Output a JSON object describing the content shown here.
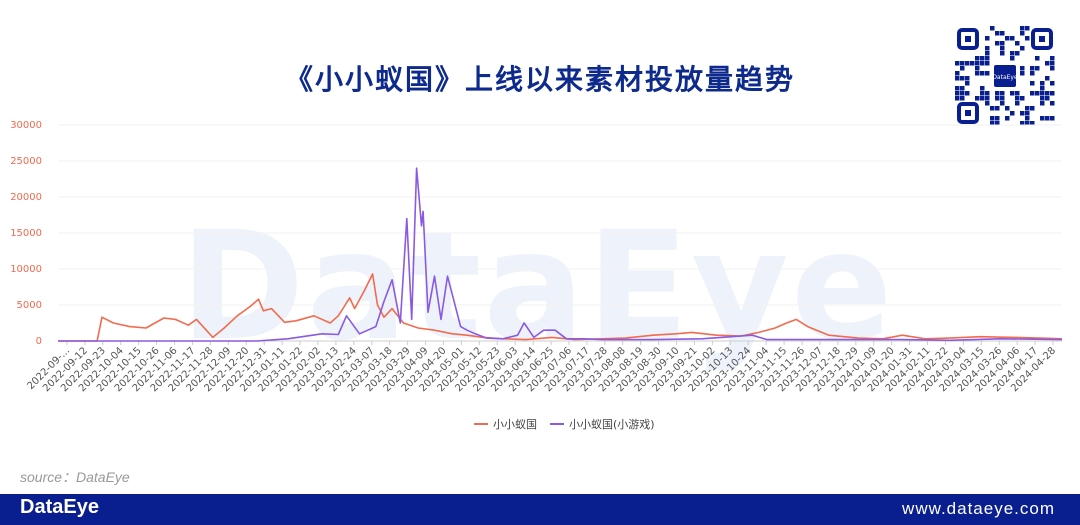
{
  "title": "《小小蚁国》上线以来素材投放量趋势",
  "source": "source：DataEye",
  "footer": {
    "logo": "DataEye",
    "url": "www.dataeye.com"
  },
  "watermark": "DataEye",
  "qr": {
    "center_label": "DataEye"
  },
  "colors": {
    "series1": "#f26b4f",
    "series2": "#8a5ae0",
    "brand": "#0a1f8f",
    "title": "#0e2a8c"
  },
  "chart_data": {
    "type": "line",
    "title": "《小小蚁国》上线以来素材投放量趋势",
    "ylim": [
      0,
      30000
    ],
    "yticks": [
      0,
      5000,
      10000,
      15000,
      20000,
      25000,
      30000
    ],
    "xstart": "2022-09-01",
    "xend": "2024-05-09",
    "xtick_labels": [
      "2022-09-...",
      "2022-09-12",
      "2022-09-23",
      "2022-10-04",
      "2022-10-15",
      "2022-10-26",
      "2022-11-06",
      "2022-11-17",
      "2022-11-28",
      "2022-12-09",
      "2022-12-20",
      "2022-12-31",
      "2023-01-11",
      "2023-01-22",
      "2023-02-02",
      "2023-02-13",
      "2023-02-24",
      "2023-03-07",
      "2023-03-18",
      "2023-03-29",
      "2023-04-09",
      "2023-04-20",
      "2023-05-01",
      "2023-05-12",
      "2023-05-23",
      "2023-06-03",
      "2023-06-14",
      "2023-06-25",
      "2023-07-06",
      "2023-07-17",
      "2023-07-28",
      "2023-08-08",
      "2023-08-19",
      "2023-08-30",
      "2023-09-10",
      "2023-09-21",
      "2023-10-02",
      "2023-10-13",
      "2023-10-24",
      "2023-11-04",
      "2023-11-15",
      "2023-11-26",
      "2023-12-07",
      "2023-12-18",
      "2023-12-29",
      "2024-01-09",
      "2024-01-20",
      "2024-01-31",
      "2024-02-11",
      "2024-02-22",
      "2024-03-04",
      "2024-03-15",
      "2024-03-26",
      "2024-04-06",
      "2024-04-17",
      "2024-04-28"
    ],
    "legend_position": "bottom-center",
    "series": [
      {
        "name": "小小蚁国",
        "color": "#f26b4f",
        "x": [
          "2022-09-01",
          "2022-09-15",
          "2022-09-25",
          "2022-09-28",
          "2022-10-05",
          "2022-10-15",
          "2022-10-25",
          "2022-11-05",
          "2022-11-12",
          "2022-11-20",
          "2022-11-25",
          "2022-12-01",
          "2022-12-05",
          "2022-12-12",
          "2022-12-20",
          "2022-12-28",
          "2023-01-02",
          "2023-01-05",
          "2023-01-10",
          "2023-01-18",
          "2023-01-25",
          "2023-02-05",
          "2023-02-15",
          "2023-02-20",
          "2023-02-27",
          "2023-03-02",
          "2023-03-08",
          "2023-03-13",
          "2023-03-16",
          "2023-03-20",
          "2023-03-25",
          "2023-04-01",
          "2023-04-10",
          "2023-04-20",
          "2023-05-01",
          "2023-05-10",
          "2023-05-20",
          "2023-06-01",
          "2023-06-15",
          "2023-07-01",
          "2023-07-15",
          "2023-08-01",
          "2023-08-15",
          "2023-09-01",
          "2023-09-15",
          "2023-09-25",
          "2023-10-10",
          "2023-10-25",
          "2023-11-05",
          "2023-11-15",
          "2023-11-22",
          "2023-11-28",
          "2023-12-05",
          "2023-12-18",
          "2024-01-05",
          "2024-01-20",
          "2024-02-01",
          "2024-02-15",
          "2024-03-01",
          "2024-03-20",
          "2024-04-10",
          "2024-04-25",
          "2024-05-09"
        ],
        "values": [
          0,
          0,
          0,
          3300,
          2500,
          2000,
          1800,
          3200,
          3000,
          2200,
          3000,
          1500,
          500,
          1800,
          3500,
          4800,
          5800,
          4200,
          4500,
          2600,
          2800,
          3500,
          2500,
          3500,
          6000,
          4500,
          7000,
          9300,
          5000,
          3300,
          4500,
          2500,
          1800,
          1500,
          1000,
          800,
          500,
          300,
          200,
          500,
          200,
          300,
          400,
          800,
          1000,
          1200,
          800,
          700,
          1200,
          1800,
          2500,
          3000,
          2000,
          800,
          400,
          300,
          800,
          300,
          400,
          600,
          500,
          400,
          300
        ]
      },
      {
        "name": "小小蚁国(小游戏)",
        "color": "#8a5ae0",
        "x": [
          "2022-09-01",
          "2023-01-01",
          "2023-01-20",
          "2023-02-10",
          "2023-02-20",
          "2023-02-25",
          "2023-03-05",
          "2023-03-15",
          "2023-03-20",
          "2023-03-25",
          "2023-03-30",
          "2023-04-03",
          "2023-04-06",
          "2023-04-09",
          "2023-04-12",
          "2023-04-13",
          "2023-04-16",
          "2023-04-20",
          "2023-04-24",
          "2023-04-28",
          "2023-05-02",
          "2023-05-06",
          "2023-05-10",
          "2023-05-15",
          "2023-05-22",
          "2023-06-01",
          "2023-06-10",
          "2023-06-14",
          "2023-06-20",
          "2023-06-26",
          "2023-07-03",
          "2023-07-10",
          "2023-07-20",
          "2023-08-01",
          "2023-09-01",
          "2023-10-01",
          "2023-11-01",
          "2023-11-10",
          "2023-11-20",
          "2023-12-01",
          "2024-01-01",
          "2024-02-01",
          "2024-03-01",
          "2024-04-01",
          "2024-05-09"
        ],
        "values": [
          0,
          0,
          300,
          1000,
          900,
          3500,
          1000,
          2000,
          5500,
          8500,
          2500,
          17000,
          3000,
          24000,
          16000,
          18000,
          4000,
          9000,
          3000,
          9000,
          5500,
          2000,
          1500,
          1000,
          400,
          300,
          800,
          2500,
          500,
          1500,
          1500,
          300,
          300,
          200,
          200,
          300,
          800,
          200,
          200,
          200,
          200,
          200,
          100,
          300,
          200
        ]
      }
    ]
  }
}
